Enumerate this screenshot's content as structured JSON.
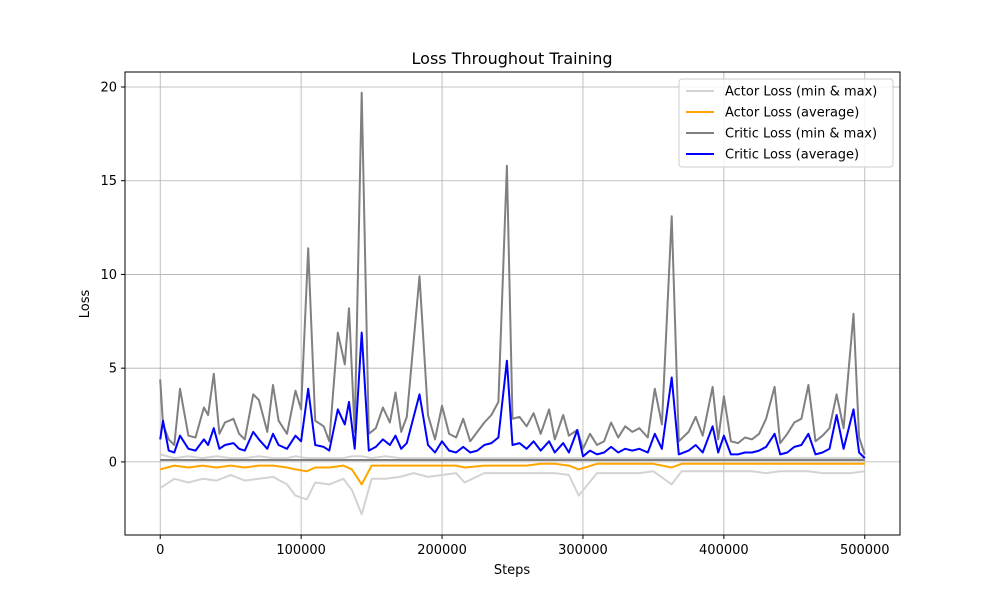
{
  "chart_data": {
    "type": "line",
    "title": "Loss Throughout Training",
    "xlabel": "Steps",
    "ylabel": "Loss",
    "xlim": [
      -25000,
      525000
    ],
    "ylim": [
      -3.9,
      20.8
    ],
    "xticks": [
      0,
      100000,
      200000,
      300000,
      400000,
      500000
    ],
    "yticks": [
      0,
      5,
      10,
      15,
      20
    ],
    "grid": true,
    "legend_position": "top-right",
    "colors": {
      "actor_band": "#d3d3d3",
      "actor_avg": "#ffa500",
      "critic_band": "#808080",
      "critic_avg": "#0000ff"
    },
    "series": [
      {
        "name": "Actor Loss (min & max)",
        "kind": "band",
        "x": [
          0,
          10000,
          20000,
          30000,
          40000,
          50000,
          60000,
          70000,
          80000,
          90000,
          96000,
          104000,
          110000,
          120000,
          130000,
          136000,
          143000,
          150000,
          160000,
          170000,
          180000,
          190000,
          200000,
          210000,
          216000,
          230000,
          240000,
          250000,
          260000,
          270000,
          280000,
          290000,
          297000,
          310000,
          320000,
          330000,
          340000,
          350000,
          363000,
          370000,
          380000,
          390000,
          400000,
          410000,
          420000,
          430000,
          440000,
          450000,
          460000,
          470000,
          480000,
          490000,
          500000
        ],
        "min": [
          -1.4,
          -0.9,
          -1.1,
          -0.9,
          -1.0,
          -0.7,
          -1.0,
          -0.9,
          -0.8,
          -1.2,
          -1.8,
          -2.0,
          -1.1,
          -1.2,
          -0.9,
          -1.5,
          -2.8,
          -0.9,
          -0.9,
          -0.8,
          -0.6,
          -0.8,
          -0.7,
          -0.6,
          -1.1,
          -0.6,
          -0.6,
          -0.6,
          -0.6,
          -0.6,
          -0.6,
          -0.7,
          -1.8,
          -0.6,
          -0.6,
          -0.6,
          -0.6,
          -0.5,
          -1.2,
          -0.5,
          -0.5,
          -0.5,
          -0.5,
          -0.5,
          -0.5,
          -0.6,
          -0.5,
          -0.5,
          -0.5,
          -0.6,
          -0.6,
          -0.6,
          -0.5
        ],
        "max": [
          0.4,
          0.2,
          0.3,
          0.2,
          0.3,
          0.2,
          0.2,
          0.3,
          0.2,
          0.2,
          0.3,
          0.2,
          0.2,
          0.2,
          0.2,
          0.3,
          0.3,
          0.2,
          0.3,
          0.2,
          0.2,
          0.2,
          0.2,
          0.2,
          0.2,
          0.2,
          0.2,
          0.2,
          0.2,
          0.2,
          0.2,
          0.2,
          0.2,
          0.2,
          0.2,
          0.2,
          0.2,
          0.2,
          0.2,
          0.2,
          0.2,
          0.2,
          0.2,
          0.2,
          0.2,
          0.2,
          0.2,
          0.2,
          0.2,
          0.2,
          0.2,
          0.2,
          0.2
        ]
      },
      {
        "name": "Actor Loss (average)",
        "kind": "line",
        "x": [
          0,
          10000,
          20000,
          30000,
          40000,
          50000,
          60000,
          70000,
          80000,
          90000,
          96000,
          104000,
          110000,
          120000,
          130000,
          136000,
          143000,
          150000,
          160000,
          170000,
          180000,
          190000,
          200000,
          210000,
          216000,
          230000,
          240000,
          250000,
          260000,
          270000,
          280000,
          290000,
          297000,
          310000,
          320000,
          330000,
          340000,
          350000,
          363000,
          370000,
          380000,
          390000,
          400000,
          410000,
          420000,
          430000,
          440000,
          450000,
          460000,
          470000,
          480000,
          490000,
          500000
        ],
        "values": [
          -0.4,
          -0.2,
          -0.3,
          -0.2,
          -0.3,
          -0.2,
          -0.3,
          -0.2,
          -0.2,
          -0.3,
          -0.4,
          -0.5,
          -0.3,
          -0.3,
          -0.2,
          -0.4,
          -1.2,
          -0.2,
          -0.2,
          -0.2,
          -0.2,
          -0.2,
          -0.2,
          -0.2,
          -0.3,
          -0.2,
          -0.2,
          -0.2,
          -0.2,
          -0.1,
          -0.1,
          -0.2,
          -0.4,
          -0.1,
          -0.1,
          -0.1,
          -0.1,
          -0.1,
          -0.3,
          -0.1,
          -0.1,
          -0.1,
          -0.1,
          -0.1,
          -0.1,
          -0.1,
          -0.1,
          -0.1,
          -0.1,
          -0.1,
          -0.1,
          -0.1,
          -0.1
        ]
      },
      {
        "name": "Critic Loss (min & max)",
        "kind": "band",
        "x": [
          0,
          2000,
          6000,
          10000,
          14000,
          20000,
          25000,
          31000,
          34000,
          38000,
          42000,
          46000,
          52000,
          56000,
          60000,
          66000,
          70000,
          76000,
          80000,
          84000,
          90000,
          96000,
          100000,
          105000,
          110000,
          116000,
          120000,
          126000,
          131000,
          134000,
          138000,
          143000,
          148000,
          153000,
          158000,
          163000,
          167000,
          171000,
          175000,
          184000,
          190000,
          195000,
          200000,
          205000,
          210000,
          215000,
          220000,
          225000,
          230000,
          235000,
          240000,
          246000,
          250000,
          255000,
          260000,
          265000,
          270000,
          276000,
          280000,
          286000,
          290000,
          296000,
          300000,
          305000,
          310000,
          315000,
          320000,
          325000,
          330000,
          335000,
          340000,
          346000,
          351000,
          356000,
          363000,
          368000,
          375000,
          380000,
          385000,
          392000,
          396000,
          400000,
          405000,
          410000,
          415000,
          420000,
          425000,
          430000,
          436000,
          440000,
          445000,
          450000,
          455000,
          460000,
          465000,
          470000,
          475000,
          480000,
          485000,
          492000,
          496000,
          500000
        ],
        "min": [
          0.1,
          0.1,
          0.1,
          0.1,
          0.1,
          0.1,
          0.1,
          0.1,
          0.1,
          0.1,
          0.1,
          0.1,
          0.1,
          0.1,
          0.1,
          0.1,
          0.1,
          0.1,
          0.1,
          0.1,
          0.1,
          0.1,
          0.1,
          0.1,
          0.1,
          0.1,
          0.1,
          0.1,
          0.1,
          0.1,
          0.1,
          0.1,
          0.1,
          0.1,
          0.1,
          0.1,
          0.1,
          0.1,
          0.1,
          0.1,
          0.1,
          0.1,
          0.1,
          0.1,
          0.1,
          0.1,
          0.1,
          0.1,
          0.1,
          0.1,
          0.1,
          0.1,
          0.1,
          0.1,
          0.1,
          0.1,
          0.1,
          0.1,
          0.1,
          0.1,
          0.1,
          0.1,
          0.1,
          0.1,
          0.1,
          0.1,
          0.1,
          0.1,
          0.1,
          0.1,
          0.1,
          0.1,
          0.1,
          0.1,
          0.1,
          0.1,
          0.1,
          0.1,
          0.1,
          0.1,
          0.1,
          0.1,
          0.1,
          0.1,
          0.1,
          0.1,
          0.1,
          0.1,
          0.1,
          0.1,
          0.1,
          0.1,
          0.1,
          0.1,
          0.1,
          0.1,
          0.1,
          0.1,
          0.1,
          0.1,
          0.1,
          0.1
        ],
        "max": [
          4.4,
          2.0,
          1.2,
          0.9,
          3.9,
          1.4,
          1.3,
          2.9,
          2.5,
          4.7,
          1.5,
          2.1,
          2.3,
          1.5,
          1.2,
          3.6,
          3.3,
          1.6,
          4.1,
          2.2,
          1.5,
          3.8,
          2.8,
          11.4,
          2.2,
          1.9,
          1.1,
          6.9,
          5.2,
          8.2,
          1.6,
          19.7,
          1.5,
          1.8,
          2.9,
          2.1,
          3.7,
          1.6,
          2.4,
          9.9,
          2.5,
          1.2,
          3.0,
          1.5,
          1.3,
          2.3,
          1.1,
          1.6,
          2.1,
          2.5,
          3.2,
          15.8,
          2.3,
          2.4,
          1.9,
          2.6,
          1.5,
          2.8,
          1.2,
          2.5,
          1.4,
          1.7,
          0.7,
          1.5,
          0.9,
          1.1,
          2.1,
          1.3,
          1.9,
          1.6,
          1.8,
          1.3,
          3.9,
          2.0,
          13.1,
          1.1,
          1.6,
          2.4,
          1.4,
          4.0,
          1.2,
          3.5,
          1.1,
          1.0,
          1.3,
          1.2,
          1.5,
          2.3,
          4.0,
          1.0,
          1.5,
          2.1,
          2.3,
          4.1,
          1.1,
          1.4,
          1.8,
          3.6,
          1.8,
          7.9,
          1.3,
          0.4
        ]
      },
      {
        "name": "Critic Loss (average)",
        "kind": "line",
        "x": [
          0,
          2000,
          6000,
          10000,
          14000,
          20000,
          25000,
          31000,
          34000,
          38000,
          42000,
          46000,
          52000,
          56000,
          60000,
          66000,
          70000,
          76000,
          80000,
          84000,
          90000,
          96000,
          100000,
          105000,
          110000,
          116000,
          120000,
          126000,
          131000,
          134000,
          138000,
          143000,
          148000,
          153000,
          158000,
          163000,
          167000,
          171000,
          175000,
          184000,
          190000,
          195000,
          200000,
          205000,
          210000,
          215000,
          220000,
          225000,
          230000,
          235000,
          240000,
          246000,
          250000,
          255000,
          260000,
          265000,
          270000,
          276000,
          280000,
          286000,
          290000,
          296000,
          300000,
          305000,
          310000,
          315000,
          320000,
          325000,
          330000,
          335000,
          340000,
          346000,
          351000,
          356000,
          363000,
          368000,
          375000,
          380000,
          385000,
          392000,
          396000,
          400000,
          405000,
          410000,
          415000,
          420000,
          425000,
          430000,
          436000,
          440000,
          445000,
          450000,
          455000,
          460000,
          465000,
          470000,
          475000,
          480000,
          485000,
          492000,
          496000,
          500000
        ],
        "values": [
          1.2,
          2.2,
          0.6,
          0.5,
          1.4,
          0.7,
          0.6,
          1.2,
          0.9,
          1.8,
          0.7,
          0.9,
          1.0,
          0.7,
          0.6,
          1.6,
          1.2,
          0.7,
          1.5,
          0.9,
          0.7,
          1.4,
          1.1,
          3.9,
          0.9,
          0.8,
          0.6,
          2.8,
          2.0,
          3.2,
          0.7,
          6.9,
          0.6,
          0.8,
          1.2,
          0.9,
          1.4,
          0.7,
          1.0,
          3.6,
          0.9,
          0.5,
          1.1,
          0.6,
          0.5,
          0.8,
          0.5,
          0.6,
          0.9,
          1.0,
          1.3,
          5.4,
          0.9,
          1.0,
          0.7,
          1.1,
          0.6,
          1.1,
          0.5,
          1.0,
          0.5,
          1.7,
          0.3,
          0.6,
          0.4,
          0.5,
          0.8,
          0.5,
          0.7,
          0.6,
          0.7,
          0.5,
          1.5,
          0.7,
          4.5,
          0.4,
          0.6,
          0.9,
          0.5,
          1.9,
          0.5,
          1.4,
          0.4,
          0.4,
          0.5,
          0.5,
          0.6,
          0.8,
          1.5,
          0.4,
          0.5,
          0.8,
          0.9,
          1.5,
          0.4,
          0.5,
          0.7,
          2.5,
          0.7,
          2.8,
          0.5,
          0.2
        ]
      }
    ]
  }
}
